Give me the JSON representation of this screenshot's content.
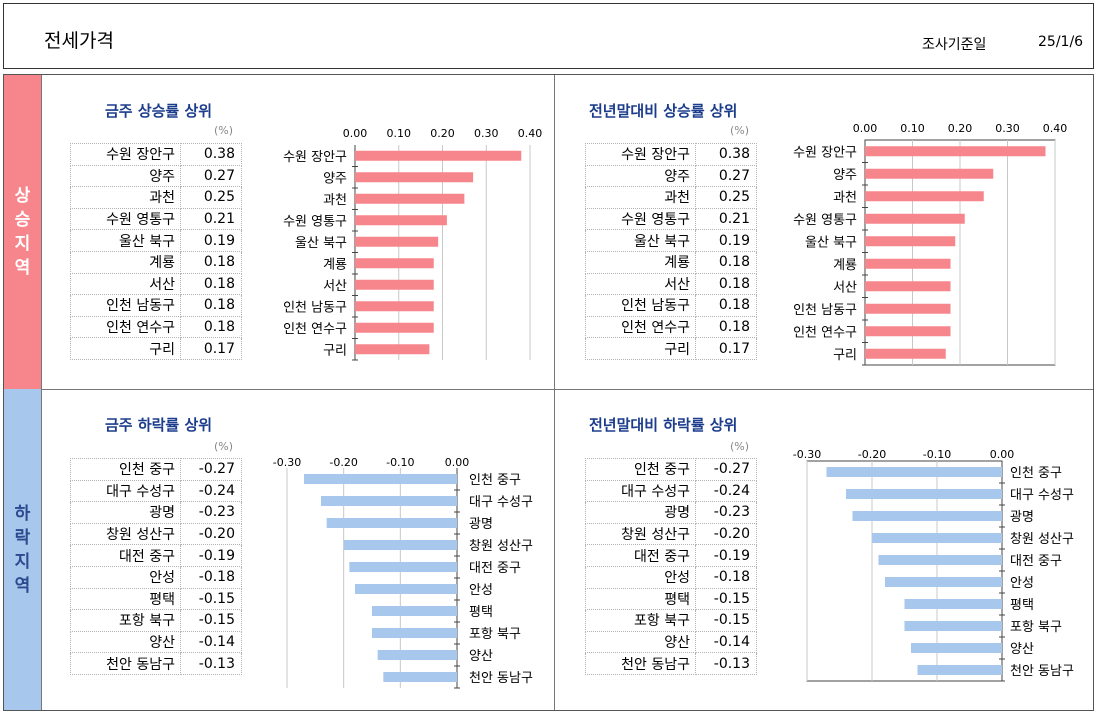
{
  "header": {
    "title": "전세가격",
    "date_label": "조사기준일",
    "date": "25/1/6"
  },
  "side": {
    "up_label": [
      "상",
      "승",
      "지",
      "역"
    ],
    "down_label": [
      "하",
      "락",
      "지",
      "역"
    ]
  },
  "colors": {
    "rise_bar": "#f7858c",
    "fall_bar": "#a7c7ec",
    "title": "#1c3d8c"
  },
  "chart_data": [
    {
      "type": "bar",
      "orientation": "horizontal",
      "title": "금주 상승률 상위",
      "unit": "(%)",
      "categories": [
        "수원 장안구",
        "양주",
        "과천",
        "수원 영통구",
        "울산 북구",
        "계룡",
        "서산",
        "인천 남동구",
        "인천 연수구",
        "구리"
      ],
      "values": [
        0.38,
        0.27,
        0.25,
        0.21,
        0.19,
        0.18,
        0.18,
        0.18,
        0.18,
        0.17
      ],
      "display_values": [
        "0.38",
        "0.27",
        "0.25",
        "0.21",
        "0.19",
        "0.18",
        "0.18",
        "0.18",
        "0.18",
        "0.17"
      ],
      "xlim": [
        0,
        0.4
      ],
      "ticks": [
        0,
        0.1,
        0.2,
        0.3,
        0.4
      ],
      "tick_labels": [
        "0.00",
        "0.10",
        "0.20",
        "0.30",
        "0.40"
      ],
      "axis_position": "top",
      "grid": true
    },
    {
      "type": "bar",
      "orientation": "horizontal",
      "title": "전년말대비 상승률 상위",
      "unit": "(%)",
      "categories": [
        "수원 장안구",
        "양주",
        "과천",
        "수원 영통구",
        "울산 북구",
        "계룡",
        "서산",
        "인천 남동구",
        "인천 연수구",
        "구리"
      ],
      "values": [
        0.38,
        0.27,
        0.25,
        0.21,
        0.19,
        0.18,
        0.18,
        0.18,
        0.18,
        0.17
      ],
      "display_values": [
        "0.38",
        "0.27",
        "0.25",
        "0.21",
        "0.19",
        "0.18",
        "0.18",
        "0.18",
        "0.18",
        "0.17"
      ],
      "xlim": [
        0,
        0.4
      ],
      "ticks": [
        0,
        0.1,
        0.2,
        0.3,
        0.4
      ],
      "tick_labels": [
        "0.00",
        "0.10",
        "0.20",
        "0.30",
        "0.40"
      ],
      "axis_position": "top",
      "grid": true
    },
    {
      "type": "bar",
      "orientation": "horizontal",
      "title": "금주 하락률 상위",
      "unit": "(%)",
      "categories": [
        "인천 중구",
        "대구 수성구",
        "광명",
        "창원 성산구",
        "대전 중구",
        "안성",
        "평택",
        "포항 북구",
        "양산",
        "천안 동남구"
      ],
      "values": [
        -0.27,
        -0.24,
        -0.23,
        -0.2,
        -0.19,
        -0.18,
        -0.15,
        -0.15,
        -0.14,
        -0.13
      ],
      "display_values": [
        "-0.27",
        "-0.24",
        "-0.23",
        "-0.20",
        "-0.19",
        "-0.18",
        "-0.15",
        "-0.15",
        "-0.14",
        "-0.13"
      ],
      "xlim": [
        -0.3,
        0
      ],
      "ticks": [
        -0.3,
        -0.2,
        -0.1,
        0
      ],
      "tick_labels": [
        "-0.30",
        "-0.20",
        "-0.10",
        "0.00"
      ],
      "axis_position": "top",
      "grid": true
    },
    {
      "type": "bar",
      "orientation": "horizontal",
      "title": "전년말대비 하락률 상위",
      "unit": "(%)",
      "categories": [
        "인천 중구",
        "대구 수성구",
        "광명",
        "창원 성산구",
        "대전 중구",
        "안성",
        "평택",
        "포항 북구",
        "양산",
        "천안 동남구"
      ],
      "values": [
        -0.27,
        -0.24,
        -0.23,
        -0.2,
        -0.19,
        -0.18,
        -0.15,
        -0.15,
        -0.14,
        -0.13
      ],
      "display_values": [
        "-0.27",
        "-0.24",
        "-0.23",
        "-0.20",
        "-0.19",
        "-0.18",
        "-0.15",
        "-0.15",
        "-0.14",
        "-0.13"
      ],
      "xlim": [
        -0.3,
        0
      ],
      "ticks": [
        -0.3,
        -0.2,
        -0.1,
        0
      ],
      "tick_labels": [
        "-0.30",
        "-0.20",
        "-0.10",
        "0.00"
      ],
      "axis_position": "top",
      "grid": true
    }
  ]
}
